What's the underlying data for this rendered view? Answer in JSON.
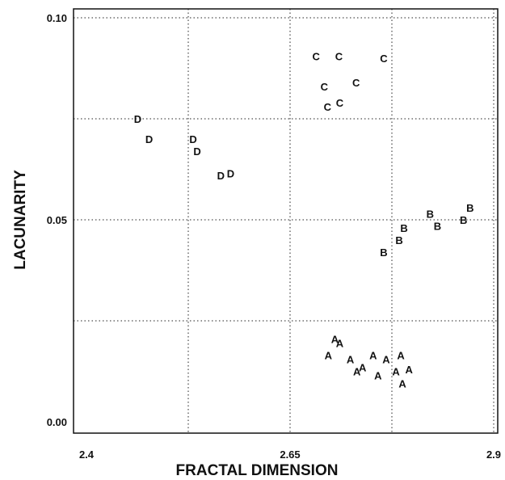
{
  "chart_data": {
    "type": "scatter",
    "xlabel": "FRACTAL DIMENSION",
    "ylabel": "LACUNARITY",
    "xlim": [
      2.4,
      2.9
    ],
    "ylim": [
      0.0,
      0.1
    ],
    "x_ticks": [
      {
        "value": 2.4,
        "label": "2.4"
      },
      {
        "value": 2.65,
        "label": "2.65"
      },
      {
        "value": 2.9,
        "label": "2.9"
      }
    ],
    "y_ticks": [
      {
        "value": 0.0,
        "label": "0.00"
      },
      {
        "value": 0.05,
        "label": "0.05"
      },
      {
        "value": 0.1,
        "label": "0.10"
      }
    ],
    "grid": true,
    "grid_y": [
      0.025,
      0.05,
      0.075,
      0.1
    ],
    "grid_x": [
      2.525,
      2.65,
      2.775,
      2.9
    ],
    "series": [
      {
        "name": "A",
        "points": [
          [
            2.697,
            0.0165
          ],
          [
            2.705,
            0.0205
          ],
          [
            2.711,
            0.0195
          ],
          [
            2.724,
            0.0155
          ],
          [
            2.732,
            0.0125
          ],
          [
            2.739,
            0.0135
          ],
          [
            2.752,
            0.0165
          ],
          [
            2.758,
            0.0115
          ],
          [
            2.768,
            0.0155
          ],
          [
            2.78,
            0.0125
          ],
          [
            2.786,
            0.0165
          ],
          [
            2.788,
            0.0095
          ],
          [
            2.796,
            0.013
          ]
        ]
      },
      {
        "name": "B",
        "points": [
          [
            2.765,
            0.042
          ],
          [
            2.784,
            0.045
          ],
          [
            2.79,
            0.048
          ],
          [
            2.822,
            0.0515
          ],
          [
            2.831,
            0.0485
          ],
          [
            2.863,
            0.05
          ],
          [
            2.871,
            0.053
          ]
        ]
      },
      {
        "name": "C",
        "points": [
          [
            2.682,
            0.0905
          ],
          [
            2.71,
            0.0905
          ],
          [
            2.765,
            0.09
          ],
          [
            2.692,
            0.083
          ],
          [
            2.731,
            0.084
          ],
          [
            2.696,
            0.078
          ],
          [
            2.711,
            0.079
          ]
        ]
      },
      {
        "name": "D",
        "points": [
          [
            2.463,
            0.075
          ],
          [
            2.477,
            0.07
          ],
          [
            2.531,
            0.07
          ],
          [
            2.536,
            0.067
          ],
          [
            2.565,
            0.061
          ],
          [
            2.577,
            0.0615
          ]
        ]
      }
    ]
  }
}
